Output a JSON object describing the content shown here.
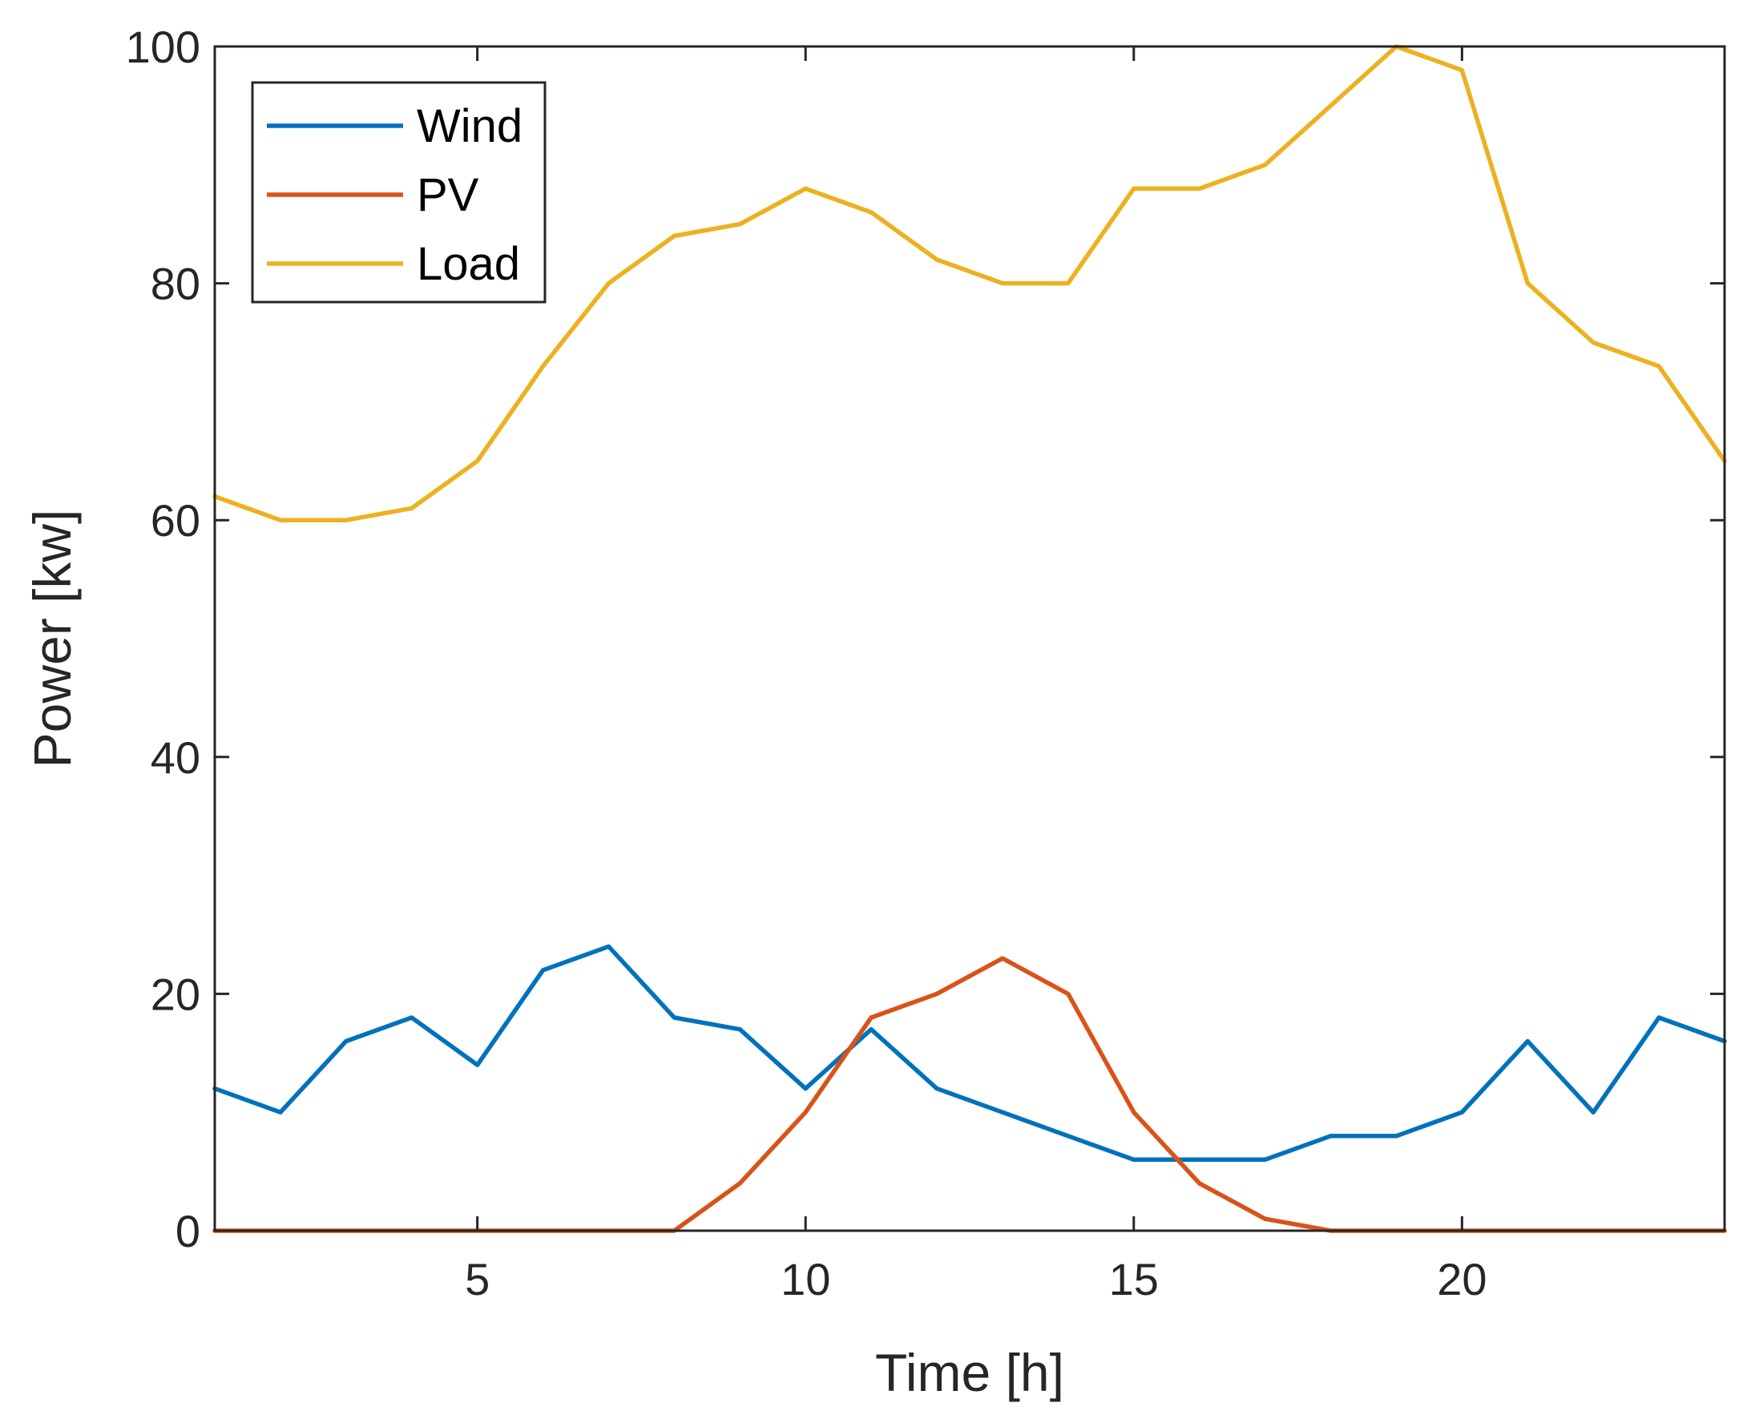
{
  "chart_data": {
    "type": "line",
    "title": "",
    "xlabel": "Time [h]",
    "ylabel": "Power [kw]",
    "xlim": [
      1,
      24
    ],
    "ylim": [
      0,
      100
    ],
    "xticks": [
      5,
      10,
      15,
      20
    ],
    "xtick_labels": [
      "5",
      "10",
      "15",
      "20"
    ],
    "yticks": [
      0,
      20,
      40,
      60,
      80,
      100
    ],
    "ytick_labels": [
      "0",
      "20",
      "40",
      "60",
      "80",
      "100"
    ],
    "grid": false,
    "legend_position": "top-left",
    "x": [
      1,
      2,
      3,
      4,
      5,
      6,
      7,
      8,
      9,
      10,
      11,
      12,
      13,
      14,
      15,
      16,
      17,
      18,
      19,
      20,
      21,
      22,
      23,
      24
    ],
    "series": [
      {
        "name": "Wind",
        "color": "#0072BD",
        "values": [
          12,
          10,
          16,
          18,
          14,
          22,
          24,
          18,
          17,
          12,
          17,
          12,
          10,
          8,
          6,
          6,
          6,
          8,
          8,
          10,
          16,
          10,
          18,
          16
        ]
      },
      {
        "name": "PV",
        "color": "#D95319",
        "values": [
          0,
          0,
          0,
          0,
          0,
          0,
          0,
          0,
          4,
          10,
          18,
          20,
          23,
          20,
          10,
          4,
          1,
          0,
          0,
          0,
          0,
          0,
          0,
          0
        ]
      },
      {
        "name": "Load",
        "color": "#EDB120",
        "values": [
          62,
          60,
          60,
          61,
          65,
          73,
          80,
          84,
          85,
          88,
          86,
          82,
          80,
          80,
          88,
          88,
          90,
          95,
          100,
          98,
          80,
          75,
          73,
          65
        ]
      }
    ]
  }
}
